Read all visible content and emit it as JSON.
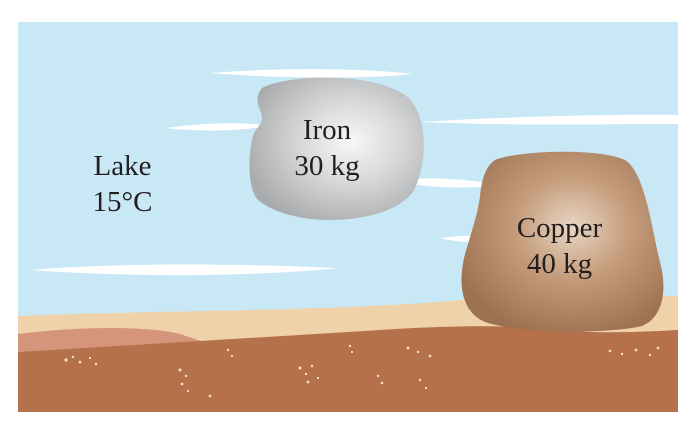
{
  "lake": {
    "name": "Lake",
    "temperature": "15°C"
  },
  "iron": {
    "name": "Iron",
    "mass": "30 kg"
  },
  "copper": {
    "name": "Copper",
    "mass": "40 kg"
  },
  "colors": {
    "water": "#c9e8f6",
    "water_streak": "#ffffff",
    "sand": "#f0d2aa",
    "sand_shadow": "#d4957c",
    "soil": "#b4714a",
    "iron": "#bfc1c3",
    "copper": "#b48a66"
  }
}
